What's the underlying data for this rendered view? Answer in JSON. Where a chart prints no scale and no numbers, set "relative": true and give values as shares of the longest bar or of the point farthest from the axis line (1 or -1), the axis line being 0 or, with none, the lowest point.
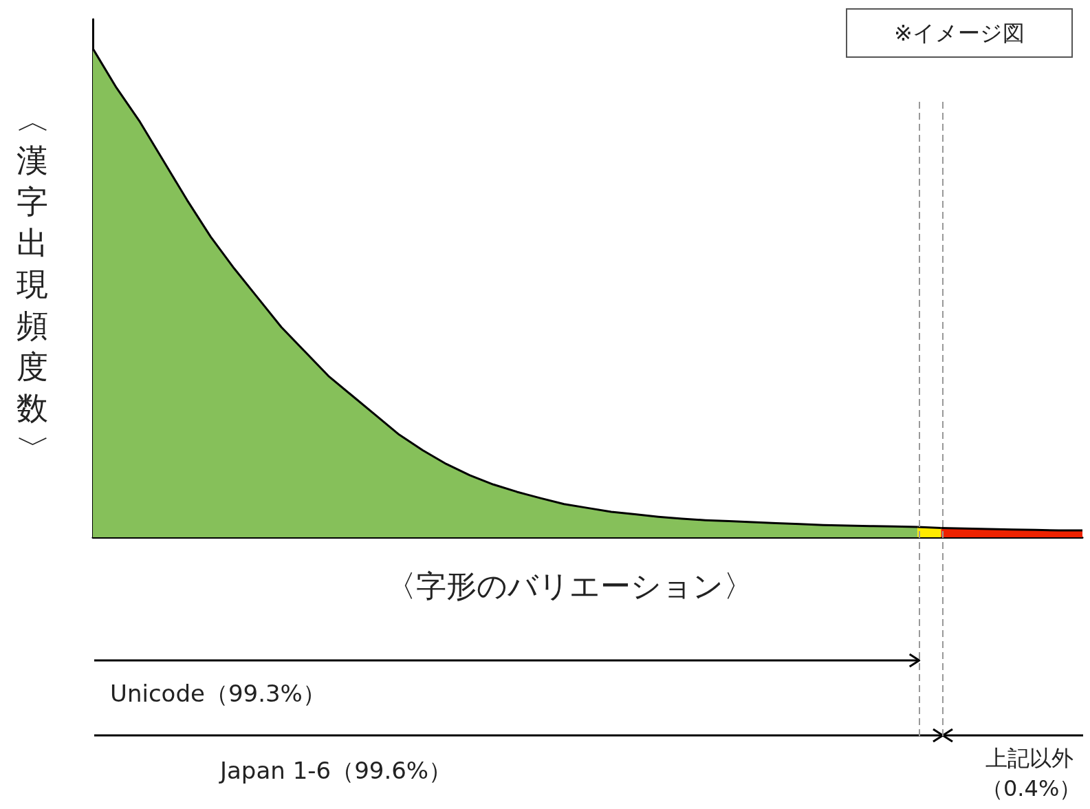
{
  "chart_data": {
    "type": "area",
    "relative": true,
    "xlabel": "〈字形のバリエーション〉",
    "ylabel": "〈漢字出現頻度数〉",
    "marker": "none",
    "categories": [
      null,
      null,
      null,
      null,
      null,
      null,
      null,
      null,
      null,
      null,
      null,
      null,
      null,
      null,
      null,
      null,
      null,
      null,
      null,
      null,
      null,
      null,
      null,
      null,
      null,
      null,
      null,
      null,
      null,
      null,
      null,
      null,
      null,
      null,
      null,
      null,
      null,
      null,
      null,
      null,
      null,
      null,
      null
    ],
    "series": [
      {
        "color": "#86c05a",
        "values": [
          1,
          0.92,
          0.85,
          0.77,
          0.69,
          0.615,
          0.55,
          0.49,
          0.43,
          0.38,
          0.33,
          0.29,
          0.25,
          0.21,
          0.178,
          0.15,
          0.127,
          0.108,
          0.093,
          0.08,
          0.068,
          0.06,
          0.052,
          0.047,
          0.042,
          0.038,
          0.035,
          0.033,
          0.031,
          0.029,
          0.027,
          0.025,
          0.024,
          0.023,
          0.022,
          0.021,
          null,
          null,
          null,
          null,
          null,
          null,
          null
        ]
      },
      {
        "color": "#ffeb00",
        "values": [
          null,
          null,
          null,
          null,
          null,
          null,
          null,
          null,
          null,
          null,
          null,
          null,
          null,
          null,
          null,
          null,
          null,
          null,
          null,
          null,
          null,
          null,
          null,
          null,
          null,
          null,
          null,
          null,
          null,
          null,
          null,
          null,
          null,
          null,
          null,
          0.021,
          0.019,
          null,
          null,
          null,
          null,
          null,
          null
        ]
      },
      {
        "color": "#ee2200",
        "values": [
          null,
          null,
          null,
          null,
          null,
          null,
          null,
          null,
          null,
          null,
          null,
          null,
          null,
          null,
          null,
          null,
          null,
          null,
          null,
          null,
          null,
          null,
          null,
          null,
          null,
          null,
          null,
          null,
          null,
          null,
          null,
          null,
          null,
          null,
          null,
          null,
          0.019,
          0.018,
          0.017,
          0.016,
          0.015,
          0.014,
          0.014
        ]
      }
    ],
    "annotations": [
      "※イメージ図",
      "Unicode（99.3%）",
      "Japan 1-6（99.6%）",
      "上記以外（0.4%）"
    ]
  }
}
